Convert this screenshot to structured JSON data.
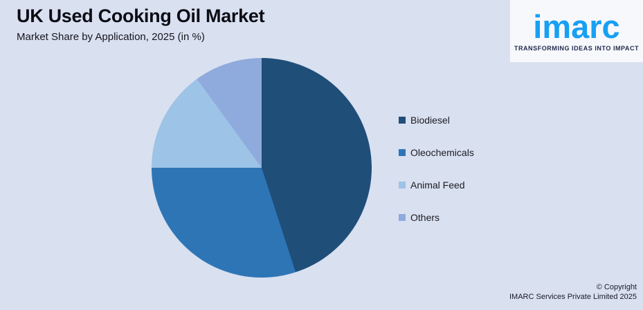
{
  "background_color": "#d9e0f0",
  "header": {
    "title": "UK Used Cooking Oil Market",
    "subtitle": "Market Share by Application, 2025 (in %)"
  },
  "logo": {
    "brand": "imarc",
    "tagline": "TRANSFORMING IDEAS INTO IMPACT",
    "brand_color": "#18a0f2",
    "tagline_color": "#232a4d",
    "card_color": "#f7f8fc"
  },
  "chart_data": {
    "type": "pie",
    "title": "UK Used Cooking Oil Market",
    "subtitle": "Market Share by Application, 2025 (in %)",
    "unit": "%",
    "categories": [
      "Biodiesel",
      "Oleochemicals",
      "Animal Feed",
      "Others"
    ],
    "values": [
      45,
      30,
      15,
      10
    ],
    "colors": [
      "#1f4e79",
      "#2e75b6",
      "#9dc3e6",
      "#8faadc"
    ],
    "start_angle_deg": 0,
    "direction": "clockwise",
    "legend_position": "right",
    "data_labels": false
  },
  "footer": {
    "copyright_line1": "© Copyright",
    "copyright_line2": "IMARC Services Private Limited 2025"
  }
}
